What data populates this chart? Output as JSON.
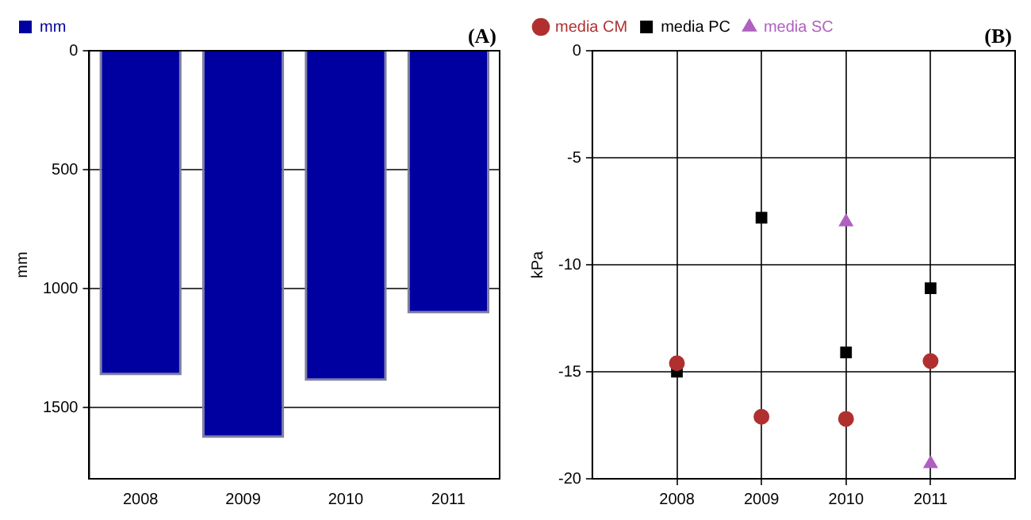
{
  "chart_data": [
    {
      "type": "bar",
      "ylabel": "mm",
      "annotations": [
        "(A)"
      ],
      "categories": [
        "2008",
        "2009",
        "2010",
        "2011"
      ],
      "series": [
        {
          "name": "mm",
          "color": "#0000a0",
          "values": [
            1365,
            1628,
            1388,
            1105
          ]
        }
      ],
      "ylim": [
        1800,
        0
      ],
      "yticks": [
        0,
        500,
        1000,
        1500
      ],
      "grid": "y",
      "legend": "top left"
    },
    {
      "type": "scatter",
      "ylabel": "kPa",
      "annotations": [
        "(B)"
      ],
      "x": [
        2008,
        2009,
        2010,
        2011
      ],
      "series": [
        {
          "name": "media CM",
          "color": "#b03030",
          "marker": "circle",
          "values": [
            -14.6,
            -17.1,
            -17.2,
            -14.5
          ]
        },
        {
          "name": "media PC",
          "color": "#000000",
          "marker": "square",
          "values": [
            -15.0,
            -7.8,
            -14.1,
            -11.1
          ]
        },
        {
          "name": "media SC",
          "color": "#b060c0",
          "marker": "triangle",
          "values": [
            null,
            null,
            -8.0,
            -19.3
          ]
        }
      ],
      "xlim": [
        2007,
        2012
      ],
      "xticks": [
        2008,
        2009,
        2010,
        2011
      ],
      "ylim": [
        -20,
        0
      ],
      "yticks": [
        0,
        -5,
        -10,
        -15,
        -20
      ],
      "grid": true,
      "legend": "top left"
    }
  ]
}
